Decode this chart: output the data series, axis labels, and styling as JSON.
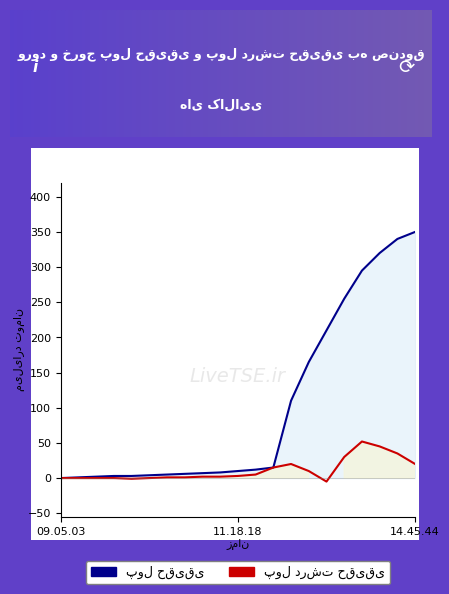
{
  "title_line1": "ورود و خروج پول حقیقی و پول درشت حقیقی به صندوق",
  "title_line2": "های کالایی",
  "ylabel": "میلیارد تومان",
  "xlabel": "زمان",
  "xtick_labels": [
    "09.05.03",
    "11.18.18",
    "14.45.44"
  ],
  "ytick_values": [
    -50,
    0,
    50,
    100,
    150,
    200,
    250,
    300,
    350,
    400
  ],
  "ylim": [
    -55,
    420
  ],
  "legend_blue": "پول حقیقی",
  "legend_red": "پول درشت حقیقی",
  "watermark": "LiveTSE.ir",
  "background_outer": [
    "#5b2fcf",
    "#3a5fdb"
  ],
  "chart_bg": "#ffffff",
  "header_bg_start": "#4455dd",
  "header_bg_end": "#7733cc",
  "blue_line_color": "#00008b",
  "red_line_color": "#cc0000",
  "blue_fill_color": "#d6eaf8",
  "blue_fill_alpha": 0.5,
  "red_fill_color": "#f5f5dc",
  "red_fill_alpha": 0.8,
  "blue_x": [
    0,
    5,
    10,
    15,
    20,
    25,
    30,
    35,
    40,
    45,
    50,
    55,
    60,
    65,
    70,
    75,
    80,
    85,
    90,
    95,
    100
  ],
  "blue_y": [
    0,
    1,
    2,
    3,
    3,
    4,
    5,
    6,
    7,
    8,
    10,
    12,
    15,
    110,
    165,
    210,
    255,
    295,
    320,
    340,
    350
  ],
  "red_x": [
    0,
    5,
    10,
    15,
    20,
    25,
    30,
    35,
    40,
    45,
    50,
    55,
    60,
    65,
    70,
    75,
    80,
    85,
    90,
    95,
    100
  ],
  "red_y": [
    0,
    0,
    0,
    0,
    -1,
    0,
    1,
    1,
    2,
    2,
    3,
    5,
    15,
    20,
    10,
    -5,
    30,
    52,
    45,
    35,
    20
  ]
}
